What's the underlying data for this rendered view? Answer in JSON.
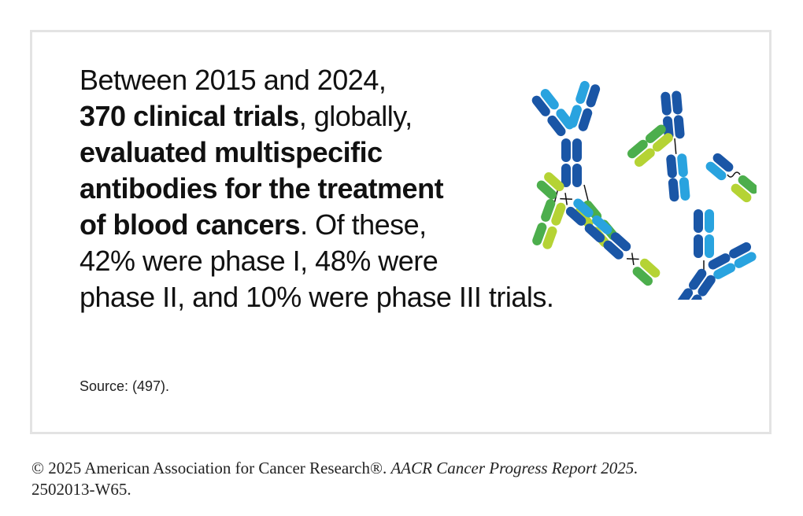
{
  "fact": {
    "line1": "Between 2015 and 2024,",
    "line2_bold": "370 clinical trials",
    "line2_rest": ", globally,",
    "line3_bold": "evaluated multispecific",
    "line4_bold": "antibodies for the treatment",
    "line5_bold": "of blood cancers",
    "line5_rest": ". Of these,",
    "line6": "42% were phase I, 48% were",
    "line7": "phase II, and 10% were phase III trials."
  },
  "source": "Source: (497).",
  "footer": {
    "copyright": "© 2025 American Association for Cancer Research®. ",
    "report": "AACR Cancer Progress Report 2025.",
    "code": "2502013-W65."
  },
  "colors": {
    "dark_blue": "#1a56a6",
    "light_blue": "#29a3df",
    "dark_green": "#4cae4c",
    "light_green": "#b5d334",
    "card_border": "#e3e3e3"
  },
  "icons": [
    "antibody-icon"
  ]
}
